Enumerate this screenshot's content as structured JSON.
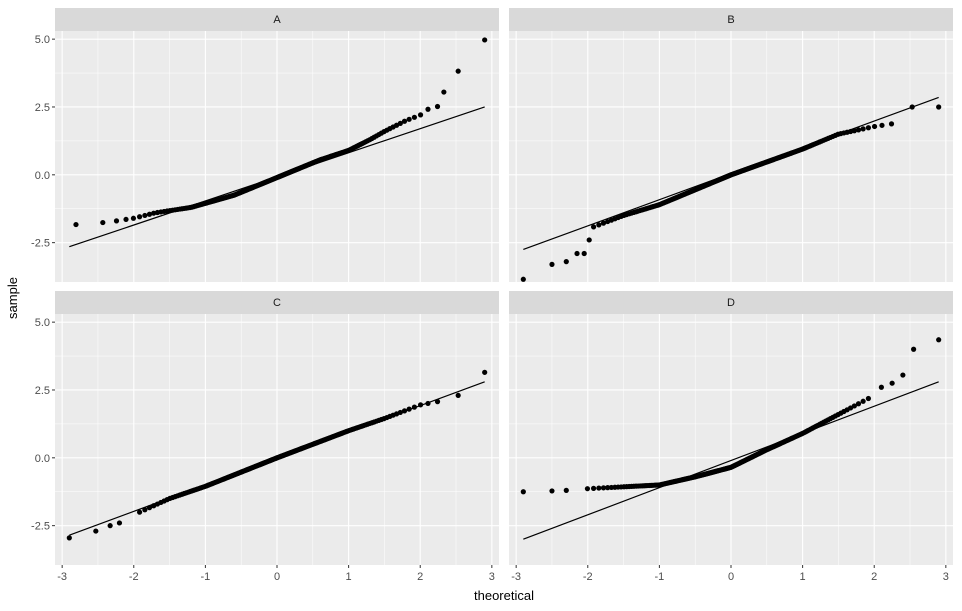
{
  "chart_data": {
    "type": "scatter",
    "subtype": "qq-plot-facets",
    "xlabel": "theoretical",
    "ylabel": "sample",
    "xlim": [
      -3.1,
      3.1
    ],
    "ylim": [
      -3.95,
      5.3
    ],
    "x_ticks": [
      -3,
      -2,
      -1,
      0,
      1,
      2,
      3
    ],
    "x_tick_labels": [
      "-3",
      "-2",
      "-1",
      "0",
      "1",
      "2",
      "3"
    ],
    "y_ticks": [
      -2.5,
      0,
      2.5,
      5
    ],
    "y_tick_labels": [
      "-2.5",
      "0.0",
      "2.5",
      "5.0"
    ],
    "grid": true,
    "legend": "none",
    "colors": {
      "panel_bg": "#ebebeb",
      "strip_bg": "#d9d9d9",
      "grid": "#ffffff",
      "point": "#000000",
      "line": "#000000"
    },
    "panels": [
      {
        "label": "A",
        "line": {
          "x": [
            -2.9,
            2.9
          ],
          "y": [
            -2.65,
            2.5
          ]
        },
        "knots": [
          [
            -2.9,
            -1.85
          ],
          [
            -2.5,
            -1.78
          ],
          [
            -2.3,
            -1.72
          ],
          [
            -2.0,
            -1.6
          ],
          [
            -1.7,
            -1.4
          ],
          [
            -1.2,
            -1.2
          ],
          [
            -0.6,
            -0.75
          ],
          [
            0,
            -0.1
          ],
          [
            0.6,
            0.55
          ],
          [
            1.0,
            0.9
          ],
          [
            1.3,
            1.3
          ],
          [
            1.5,
            1.6
          ],
          [
            1.8,
            2.0
          ],
          [
            2.0,
            2.2
          ],
          [
            2.15,
            2.5
          ],
          [
            2.25,
            2.52
          ]
        ],
        "tail": [
          [
            2.33,
            3.05
          ],
          [
            2.53,
            3.82
          ],
          [
            2.9,
            4.97
          ]
        ]
      },
      {
        "label": "B",
        "line": {
          "x": [
            -2.9,
            2.9
          ],
          "y": [
            -2.75,
            2.85
          ]
        },
        "knots": [
          [
            -2.0,
            -2.0
          ],
          [
            -1.5,
            -1.5
          ],
          [
            -1.0,
            -1.1
          ],
          [
            0,
            0
          ],
          [
            1.0,
            0.95
          ],
          [
            1.5,
            1.5
          ],
          [
            2.0,
            1.78
          ],
          [
            2.3,
            1.9
          ]
        ],
        "tail": [
          [
            -2.9,
            -3.85
          ],
          [
            -2.5,
            -3.3
          ],
          [
            -2.3,
            -3.2
          ],
          [
            -2.15,
            -2.9
          ],
          [
            -2.05,
            -2.9
          ],
          [
            -1.98,
            -2.4
          ],
          [
            2.53,
            2.5
          ],
          [
            2.9,
            2.5
          ]
        ]
      },
      {
        "label": "C",
        "line": {
          "x": [
            -2.9,
            2.9
          ],
          "y": [
            -2.85,
            2.8
          ]
        },
        "knots": [
          [
            -2.0,
            -2.1
          ],
          [
            -1.5,
            -1.5
          ],
          [
            -1.0,
            -1.05
          ],
          [
            0,
            0
          ],
          [
            1.0,
            1.0
          ],
          [
            1.5,
            1.45
          ],
          [
            2.0,
            1.95
          ],
          [
            2.3,
            2.1
          ]
        ],
        "tail": [
          [
            -2.9,
            -2.95
          ],
          [
            -2.53,
            -2.7
          ],
          [
            -2.33,
            -2.5
          ],
          [
            -2.2,
            -2.4
          ],
          [
            2.53,
            2.3
          ],
          [
            2.9,
            3.15
          ]
        ]
      },
      {
        "label": "D",
        "line": {
          "x": [
            -2.9,
            2.9
          ],
          "y": [
            -3.0,
            2.8
          ]
        },
        "knots": [
          [
            -2.1,
            -1.15
          ],
          [
            -1.0,
            -1.0
          ],
          [
            -0.5,
            -0.7
          ],
          [
            0,
            -0.35
          ],
          [
            0.5,
            0.3
          ],
          [
            1.0,
            0.9
          ],
          [
            1.5,
            1.6
          ],
          [
            2.0,
            2.3
          ]
        ],
        "tail": [
          [
            -2.9,
            -1.25
          ],
          [
            -2.5,
            -1.22
          ],
          [
            -2.3,
            -1.2
          ],
          [
            2.1,
            2.6
          ],
          [
            2.25,
            2.75
          ],
          [
            2.4,
            3.05
          ],
          [
            2.55,
            4.0
          ],
          [
            2.9,
            4.35
          ]
        ]
      }
    ]
  }
}
